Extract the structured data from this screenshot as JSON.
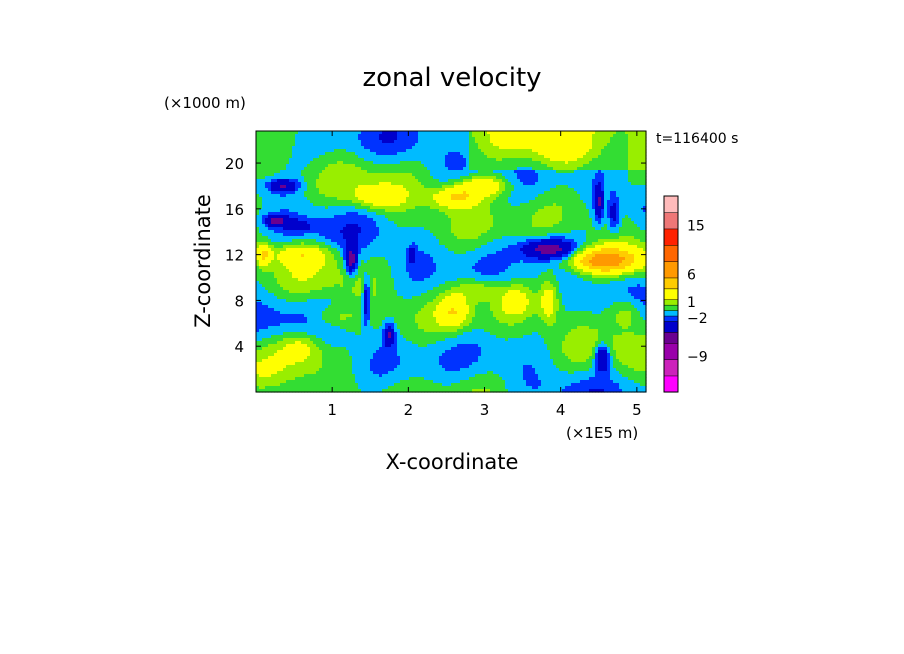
{
  "chart_data": {
    "type": "heatmap",
    "title": "zonal velocity",
    "xlabel": "X-coordinate",
    "ylabel": "Z-coordinate",
    "x_unit": "(×1E5 m)",
    "y_unit": "(×1000 m)",
    "time_label": "t=116400 s",
    "xlim": [
      0,
      5.12
    ],
    "ylim": [
      0,
      22.8
    ],
    "x_ticks": [
      1,
      2,
      3,
      4,
      5
    ],
    "y_ticks": [
      4,
      8,
      12,
      16,
      20
    ],
    "colorbar": {
      "levels": [
        -15,
        -12,
        -9,
        -6,
        -4,
        -2,
        -1,
        0,
        1,
        2,
        4,
        6,
        9,
        12,
        15,
        18
      ],
      "colors": [
        "#ff00ff",
        "#cc22bb",
        "#9900aa",
        "#6a0090",
        "#0000cc",
        "#0033ff",
        "#00bbff",
        "#33dd33",
        "#99ee00",
        "#ffff00",
        "#ffcc00",
        "#ff9900",
        "#ff6600",
        "#ff2200",
        "#ee7777",
        "#ffbbbb"
      ],
      "tick_labels": [
        {
          "value": 15,
          "label": "15"
        },
        {
          "value": 6,
          "label": "6"
        },
        {
          "value": 1,
          "label": "1"
        },
        {
          "value": -2,
          "label": "−2"
        },
        {
          "value": -9,
          "label": "−9"
        }
      ]
    },
    "features": [
      {
        "x": 0.35,
        "z": 18.0,
        "v": -4,
        "sx": 0.2,
        "sz": 0.6
      },
      {
        "x": 0.25,
        "z": 15.0,
        "v": -4,
        "sx": 0.15,
        "sz": 0.5
      },
      {
        "x": 0.55,
        "z": 14.5,
        "v": -2,
        "sx": 0.2,
        "sz": 0.6
      },
      {
        "x": 1.25,
        "z": 11.5,
        "v": -5,
        "sx": 0.08,
        "sz": 1.3
      },
      {
        "x": 1.45,
        "z": 8.0,
        "v": -4,
        "sx": 0.05,
        "sz": 2.2
      },
      {
        "x": 1.75,
        "z": 5.0,
        "v": -4,
        "sx": 0.07,
        "sz": 1.0
      },
      {
        "x": 2.05,
        "z": 12.0,
        "v": -3,
        "sx": 0.05,
        "sz": 0.7
      },
      {
        "x": 3.85,
        "z": 12.5,
        "v": -5,
        "sx": 0.35,
        "sz": 0.9
      },
      {
        "x": 4.55,
        "z": 3.0,
        "v": -5,
        "sx": 0.1,
        "sz": 1.2
      },
      {
        "x": 4.5,
        "z": 16.5,
        "v": -4,
        "sx": 0.06,
        "sz": 1.6
      },
      {
        "x": 4.7,
        "z": 15.5,
        "v": -3,
        "sx": 0.08,
        "sz": 1.6
      },
      {
        "x": 4.55,
        "z": 11.5,
        "v": 7,
        "sx": 0.45,
        "sz": 1.1
      },
      {
        "x": 3.0,
        "z": 18.0,
        "v": 4,
        "sx": 0.35,
        "sz": 1.0
      },
      {
        "x": 2.6,
        "z": 17.0,
        "v": 4,
        "sx": 0.3,
        "sz": 1.0
      },
      {
        "x": 1.6,
        "z": 17.0,
        "v": 3,
        "sx": 0.3,
        "sz": 1.0
      },
      {
        "x": 0.6,
        "z": 12.0,
        "v": 3,
        "sx": 0.4,
        "sz": 1.0
      },
      {
        "x": 0.1,
        "z": 12.0,
        "v": 4,
        "sx": 0.1,
        "sz": 1.0
      },
      {
        "x": 0.6,
        "z": 4.0,
        "v": 3,
        "sx": 0.3,
        "sz": 1.5
      },
      {
        "x": 1.0,
        "z": 6.5,
        "v": 2,
        "sx": 0.3,
        "sz": 1.0
      },
      {
        "x": 2.6,
        "z": 7.0,
        "v": 3,
        "sx": 0.2,
        "sz": 1.5
      },
      {
        "x": 2.9,
        "z": 9.0,
        "v": 2,
        "sx": 0.3,
        "sz": 1.0
      },
      {
        "x": 3.4,
        "z": 8.0,
        "v": 2,
        "sx": 0.2,
        "sz": 1.2
      },
      {
        "x": 3.85,
        "z": 8.0,
        "v": 3,
        "sx": 0.12,
        "sz": 2.0
      },
      {
        "x": 4.85,
        "z": 7.0,
        "v": 3,
        "sx": 0.25,
        "sz": 1.5
      },
      {
        "x": 4.0,
        "z": 21.0,
        "v": 2,
        "sx": 0.5,
        "sz": 1.5
      }
    ]
  }
}
